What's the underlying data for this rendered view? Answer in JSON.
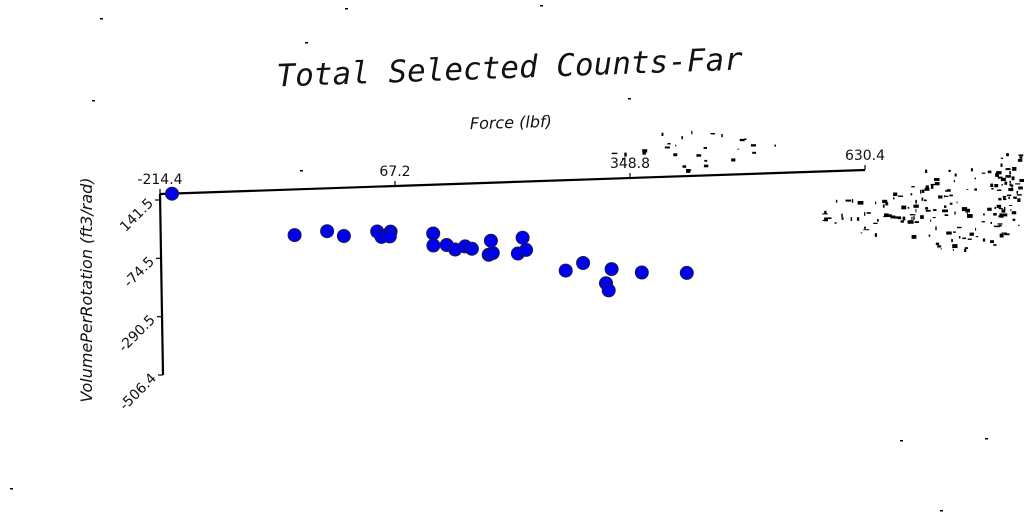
{
  "chart_data": {
    "type": "scatter",
    "title": "Total Selected Counts-Far",
    "xlabel": "Force (lbf)",
    "ylabel": "VolumePerRotation (ft3/rad)",
    "x_ticks": [
      "-214.4",
      "67.2",
      "348.8",
      "630.4"
    ],
    "y_ticks": [
      "141.5",
      "-74.5",
      "-290.5",
      "-506.4"
    ],
    "xlim": [
      -214.4,
      630.4
    ],
    "ylim": [
      -506.4,
      141.5
    ],
    "grid": false,
    "legend": "none",
    "marker_color": "#0000ee",
    "marker_edge_color": "#1a1a4d",
    "series": [
      {
        "points": [
          {
            "x": -200,
            "y": 141
          },
          {
            "x": -54,
            "y": -22
          },
          {
            "x": -15,
            "y": -12
          },
          {
            "x": 5,
            "y": -31
          },
          {
            "x": 45,
            "y": -19
          },
          {
            "x": 50,
            "y": -39
          },
          {
            "x": 61,
            "y": -21
          },
          {
            "x": 60,
            "y": -38
          },
          {
            "x": 112,
            "y": -33
          },
          {
            "x": 112,
            "y": -76
          },
          {
            "x": 128,
            "y": -76
          },
          {
            "x": 138,
            "y": -93
          },
          {
            "x": 150,
            "y": -83
          },
          {
            "x": 158,
            "y": -92
          },
          {
            "x": 181,
            "y": -66
          },
          {
            "x": 178,
            "y": -116
          },
          {
            "x": 183,
            "y": -110
          },
          {
            "x": 219,
            "y": -59
          },
          {
            "x": 213,
            "y": -115
          },
          {
            "x": 223,
            "y": -103
          },
          {
            "x": 270,
            "y": -182
          },
          {
            "x": 291,
            "y": -157
          },
          {
            "x": 318,
            "y": -232
          },
          {
            "x": 325,
            "y": -182
          },
          {
            "x": 321,
            "y": -258
          },
          {
            "x": 361,
            "y": -198
          },
          {
            "x": 415,
            "y": -205
          }
        ]
      }
    ]
  }
}
